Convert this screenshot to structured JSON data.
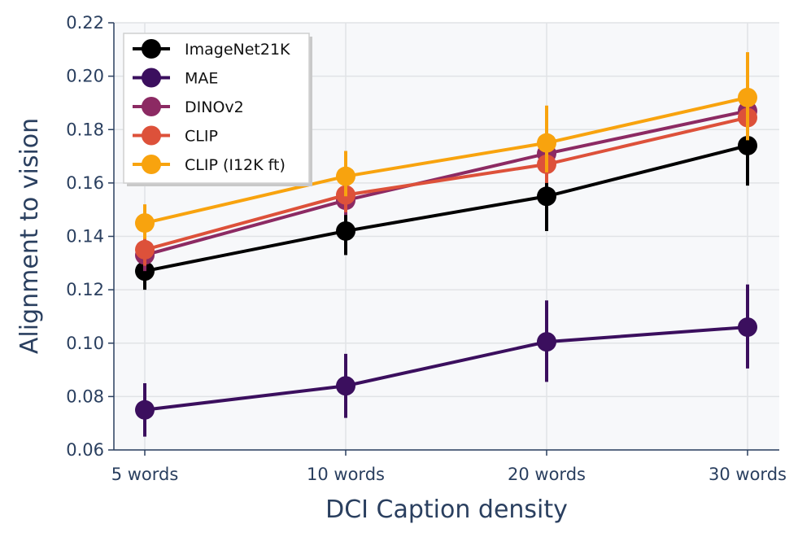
{
  "chart_data": {
    "type": "line",
    "title": "",
    "xlabel": "DCI Caption density",
    "ylabel": "Alignment to vision",
    "categories": [
      "5 words",
      "10 words",
      "20 words",
      "30 words"
    ],
    "ylim": [
      0.06,
      0.22
    ],
    "yticks": [
      "0.06",
      "0.08",
      "0.10",
      "0.12",
      "0.14",
      "0.16",
      "0.18",
      "0.20",
      "0.22"
    ],
    "grid": true,
    "legend_position": "top-left",
    "series": [
      {
        "name": "ImageNet21K",
        "color": "#000000",
        "values": [
          0.127,
          0.142,
          0.155,
          0.174
        ],
        "err_low": [
          0.12,
          0.133,
          0.142,
          0.159
        ],
        "err_high": [
          0.133,
          0.15,
          0.166,
          0.185
        ]
      },
      {
        "name": "MAE",
        "color": "#3b0f5e",
        "values": [
          0.075,
          0.084,
          0.1005,
          0.106
        ],
        "err_low": [
          0.065,
          0.072,
          0.0855,
          0.0905
        ],
        "err_high": [
          0.085,
          0.096,
          0.116,
          0.122
        ]
      },
      {
        "name": "DINOv2",
        "color": "#8c2a63",
        "values": [
          0.133,
          0.1535,
          0.171,
          0.187
        ],
        "err_low": [
          0.127,
          0.148,
          0.165,
          0.182
        ],
        "err_high": [
          0.14,
          0.159,
          0.178,
          0.193
        ]
      },
      {
        "name": "CLIP",
        "color": "#dd513a",
        "values": [
          0.135,
          0.1555,
          0.167,
          0.1845
        ],
        "err_low": [
          0.129,
          0.149,
          0.16,
          0.179
        ],
        "err_high": [
          0.141,
          0.162,
          0.174,
          0.19
        ]
      },
      {
        "name": "CLIP (I12K ft)",
        "color": "#f8a30e",
        "values": [
          0.145,
          0.1625,
          0.175,
          0.192
        ],
        "err_low": [
          0.139,
          0.155,
          0.164,
          0.176
        ],
        "err_high": [
          0.152,
          0.172,
          0.189,
          0.209
        ]
      }
    ]
  }
}
